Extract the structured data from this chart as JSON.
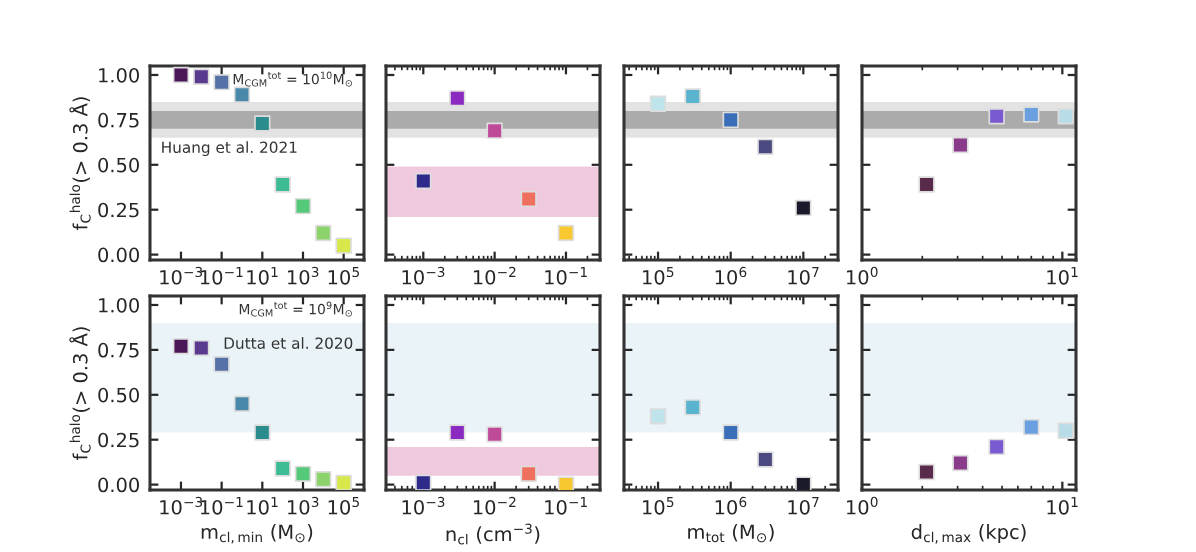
{
  "chart_data": [
    {
      "type": "scatter",
      "x": [
        0.001,
        0.01,
        0.1,
        1,
        10,
        100,
        1000,
        10000,
        100000
      ],
      "values": [
        1.0,
        0.99,
        0.96,
        0.89,
        0.73,
        0.39,
        0.27,
        0.12,
        0.05
      ],
      "colors": [
        "#4b1658",
        "#5a3a8e",
        "#5670a8",
        "#4a88aa",
        "#2a8c8c",
        "#3cbb95",
        "#55c87a",
        "#8bd36a",
        "#d8e84a"
      ],
      "marker": "square",
      "log": "x",
      "xlim": [
        3e-05,
        1000000.0
      ],
      "xticks": [
        {
          "value": 0.001,
          "label": "10$^{−3}$"
        },
        {
          "value": 0.1,
          "label": "10$^{−1}$"
        },
        {
          "value": 10,
          "label": "10$^{1}$"
        },
        {
          "value": 1000,
          "label": "10$^{3}$"
        },
        {
          "value": 100000,
          "label": "10$^{5}$"
        }
      ],
      "ylim": [
        -0.03,
        1.05
      ],
      "yticks": [
        {
          "value": 0,
          "label": "0.00"
        },
        {
          "value": 0.25,
          "label": "0.25"
        },
        {
          "value": 0.5,
          "label": "0.50"
        },
        {
          "value": 0.75,
          "label": "0.75"
        },
        {
          "value": 1,
          "label": "1.00"
        }
      ],
      "ylabel": "f$_{C}$$^{halo}$(> 0.3 Å)",
      "bands": [
        {
          "axis": "y",
          "from": 0.65,
          "to": 0.85,
          "color": "#e3e3e3",
          "label": "Huang et al. 2021"
        },
        {
          "axis": "y",
          "from": 0.7,
          "to": 0.8,
          "color": "#ababab"
        }
      ],
      "annotations": [
        "M$_{CGM}$$^{tot}$ = 10$^{10}$M$_{⊙}$"
      ]
    },
    {
      "type": "scatter",
      "x": [
        0.001,
        0.003,
        0.01,
        0.03,
        0.1
      ],
      "values": [
        0.41,
        0.87,
        0.69,
        0.31,
        0.12
      ],
      "colors": [
        "#2e2a8c",
        "#8a2ac0",
        "#c04a9a",
        "#f07060",
        "#f8c830"
      ],
      "marker": "square",
      "log": "x",
      "xlim": [
        0.0003,
        0.3
      ],
      "xticks": [
        {
          "value": 0.001,
          "label": "10$^{−3}$"
        },
        {
          "value": 0.01,
          "label": "10$^{−2}$"
        },
        {
          "value": 0.1,
          "label": "10$^{−1}$"
        }
      ],
      "ylim": [
        -0.03,
        1.05
      ],
      "yticks": [
        0,
        0.25,
        0.5,
        0.75,
        1
      ],
      "tick_labels": "x",
      "bands": [
        {
          "axis": "y",
          "from": 0.65,
          "to": 0.85,
          "color": "#e3e3e3"
        },
        {
          "axis": "y",
          "from": 0.7,
          "to": 0.8,
          "color": "#ababab"
        },
        {
          "axis": "y",
          "from": 0.21,
          "to": 0.49,
          "color": "#efc9dd"
        }
      ]
    },
    {
      "type": "scatter",
      "x": [
        100000,
        300000,
        1000000,
        3000000,
        10000000
      ],
      "values": [
        0.84,
        0.88,
        0.75,
        0.6,
        0.26
      ],
      "colors": [
        "#bfe4ec",
        "#5ab4d0",
        "#3a6eb8",
        "#4a4a80",
        "#1a1a2a"
      ],
      "marker": "square",
      "log": "x",
      "xlim": [
        34000.0,
        30000000.0
      ],
      "xticks": [
        {
          "value": 100000,
          "label": "10$^{5}$"
        },
        {
          "value": 1000000,
          "label": "10$^{6}$"
        },
        {
          "value": 10000000,
          "label": "10$^{7}$"
        }
      ],
      "ylim": [
        -0.03,
        1.05
      ],
      "yticks": [
        0,
        0.25,
        0.5,
        0.75,
        1
      ],
      "tick_labels": "x",
      "bands": [
        {
          "axis": "y",
          "from": 0.65,
          "to": 0.85,
          "color": "#e3e3e3"
        },
        {
          "axis": "y",
          "from": 0.7,
          "to": 0.8,
          "color": "#ababab"
        }
      ]
    },
    {
      "type": "scatter",
      "x": [
        2.1,
        3.1,
        4.7,
        7.0,
        10.4
      ],
      "values": [
        0.39,
        0.61,
        0.77,
        0.78,
        0.77
      ],
      "colors": [
        "#5a2a4a",
        "#8a3a8a",
        "#7a5ad0",
        "#6aa0e0",
        "#b8dce8"
      ],
      "marker": "square",
      "log": "x",
      "xlim": [
        1,
        11.7
      ],
      "xticks": [
        {
          "value": 1,
          "label": "10$^{0}$"
        },
        {
          "value": 10,
          "label": "10$^{1}$"
        }
      ],
      "ylim": [
        -0.03,
        1.05
      ],
      "yticks": [
        0,
        0.25,
        0.5,
        0.75,
        1
      ],
      "tick_labels": "x",
      "bands": [
        {
          "axis": "y",
          "from": 0.65,
          "to": 0.85,
          "color": "#e3e3e3"
        },
        {
          "axis": "y",
          "from": 0.7,
          "to": 0.8,
          "color": "#ababab"
        }
      ]
    },
    {
      "type": "scatter",
      "x": [
        0.001,
        0.01,
        0.1,
        1,
        10,
        100,
        1000,
        10000,
        100000
      ],
      "values": [
        0.77,
        0.76,
        0.67,
        0.45,
        0.29,
        0.09,
        0.06,
        0.03,
        0.01
      ],
      "colors": [
        "#4b1658",
        "#5a3a8e",
        "#5670a8",
        "#4a88aa",
        "#2a8c8c",
        "#3cbb95",
        "#55c87a",
        "#8bd36a",
        "#d8e84a"
      ],
      "marker": "square",
      "log": "x",
      "xlim": [
        3e-05,
        1000000.0
      ],
      "xticks": [
        {
          "value": 0.001,
          "label": "10$^{−3}$"
        },
        {
          "value": 0.1,
          "label": "10$^{−1}$"
        },
        {
          "value": 10,
          "label": "10$^{1}$"
        },
        {
          "value": 1000,
          "label": "10$^{3}$"
        },
        {
          "value": 100000,
          "label": "10$^{5}$"
        }
      ],
      "ylim": [
        -0.03,
        1.05
      ],
      "yticks": [
        {
          "value": 0,
          "label": "0.00"
        },
        {
          "value": 0.25,
          "label": "0.25"
        },
        {
          "value": 0.5,
          "label": "0.50"
        },
        {
          "value": 0.75,
          "label": "0.75"
        },
        {
          "value": 1,
          "label": "1.00"
        }
      ],
      "ylabel": "f$_{C}$$^{halo}$(> 0.3 Å)",
      "xlabel": "m$_{cl,min}$ (M$_{⊙}$)",
      "bands": [
        {
          "axis": "y",
          "from": 0.29,
          "to": 0.9,
          "color": "#e9f3f8",
          "label": "Dutta et al. 2020"
        }
      ],
      "annotations": [
        "M$_{CGM}$$^{tot}$ = 10$^{9}$M$_{⊙}$"
      ]
    },
    {
      "type": "scatter",
      "x": [
        0.001,
        0.003,
        0.01,
        0.03,
        0.1
      ],
      "values": [
        0.01,
        0.29,
        0.28,
        0.06,
        0.0
      ],
      "colors": [
        "#2e2a8c",
        "#8a2ac0",
        "#c04a9a",
        "#f07060",
        "#f8c830"
      ],
      "marker": "square",
      "log": "x",
      "xlim": [
        0.0003,
        0.3
      ],
      "xticks": [
        {
          "value": 0.001,
          "label": "10$^{−3}$"
        },
        {
          "value": 0.01,
          "label": "10$^{−2}$"
        },
        {
          "value": 0.1,
          "label": "10$^{−1}$"
        }
      ],
      "ylim": [
        -0.03,
        1.05
      ],
      "yticks": [
        0,
        0.25,
        0.5,
        0.75,
        1
      ],
      "tick_labels": "x",
      "xlabel": "n$_{cl}$ (cm$^{−3}$)",
      "bands": [
        {
          "axis": "y",
          "from": 0.29,
          "to": 0.9,
          "color": "#e9f3f8"
        },
        {
          "axis": "y",
          "from": 0.05,
          "to": 0.21,
          "color": "#efc9dd"
        }
      ]
    },
    {
      "type": "scatter",
      "x": [
        100000,
        300000,
        1000000,
        3000000,
        10000000
      ],
      "values": [
        0.38,
        0.43,
        0.29,
        0.14,
        0.0
      ],
      "colors": [
        "#bfe4ec",
        "#5ab4d0",
        "#3a6eb8",
        "#4a4a80",
        "#1a1a2a"
      ],
      "marker": "square",
      "log": "x",
      "xlim": [
        34000.0,
        30000000.0
      ],
      "xticks": [
        {
          "value": 100000,
          "label": "10$^{5}$"
        },
        {
          "value": 1000000,
          "label": "10$^{6}$"
        },
        {
          "value": 10000000,
          "label": "10$^{7}$"
        }
      ],
      "ylim": [
        -0.03,
        1.05
      ],
      "yticks": [
        0,
        0.25,
        0.5,
        0.75,
        1
      ],
      "tick_labels": "x",
      "xlabel": "m$_{tot}$ (M$_{⊙}$)",
      "bands": [
        {
          "axis": "y",
          "from": 0.29,
          "to": 0.9,
          "color": "#e9f3f8"
        }
      ]
    },
    {
      "type": "scatter",
      "x": [
        2.1,
        3.1,
        4.7,
        7.0,
        10.4
      ],
      "values": [
        0.07,
        0.12,
        0.21,
        0.32,
        0.3
      ],
      "colors": [
        "#5a2a4a",
        "#8a3a8a",
        "#7a5ad0",
        "#6aa0e0",
        "#b8dce8"
      ],
      "marker": "square",
      "log": "x",
      "xlim": [
        1,
        11.7
      ],
      "xticks": [
        {
          "value": 1,
          "label": "10$^{0}$"
        },
        {
          "value": 10,
          "label": "10$^{1}$"
        }
      ],
      "ylim": [
        -0.03,
        1.05
      ],
      "yticks": [
        0,
        0.25,
        0.5,
        0.75,
        1
      ],
      "tick_labels": "x",
      "xlabel": "d$_{cl,max}$ (kpc)",
      "bands": [
        {
          "axis": "y",
          "from": 0.29,
          "to": 0.9,
          "color": "#e9f3f8"
        }
      ]
    }
  ]
}
